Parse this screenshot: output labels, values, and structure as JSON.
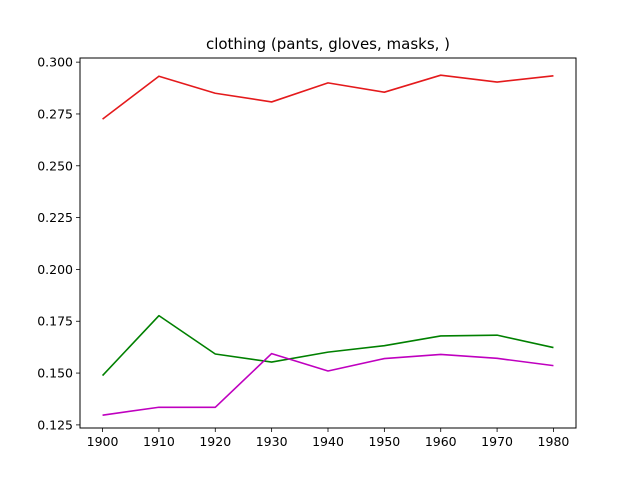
{
  "chart_data": {
    "type": "line",
    "title": "clothing (pants, gloves, masks, )",
    "xlabel": "",
    "ylabel": "",
    "x": [
      1900,
      1910,
      1920,
      1930,
      1940,
      1950,
      1960,
      1970,
      1980
    ],
    "xticks": [
      "1900",
      "1910",
      "1920",
      "1930",
      "1940",
      "1950",
      "1960",
      "1970",
      "1980"
    ],
    "yticks": [
      "0.125",
      "0.150",
      "0.175",
      "0.200",
      "0.225",
      "0.250",
      "0.275",
      "0.300"
    ],
    "xlim": [
      1896,
      1984
    ],
    "ylim": [
      0.1235,
      0.302
    ],
    "grid": false,
    "series": [
      {
        "color": "#e41a1c",
        "values": [
          0.2725,
          0.2932,
          0.285,
          0.2808,
          0.29,
          0.2855,
          0.2937,
          0.2904,
          0.2934
        ]
      },
      {
        "color": "#008000",
        "values": [
          0.1488,
          0.1777,
          0.1592,
          0.1553,
          0.1601,
          0.1632,
          0.1679,
          0.1683,
          0.1623
        ]
      },
      {
        "color": "#bf00bf",
        "values": [
          0.1297,
          0.1335,
          0.1335,
          0.1594,
          0.151,
          0.157,
          0.159,
          0.1571,
          0.1536
        ]
      }
    ]
  }
}
